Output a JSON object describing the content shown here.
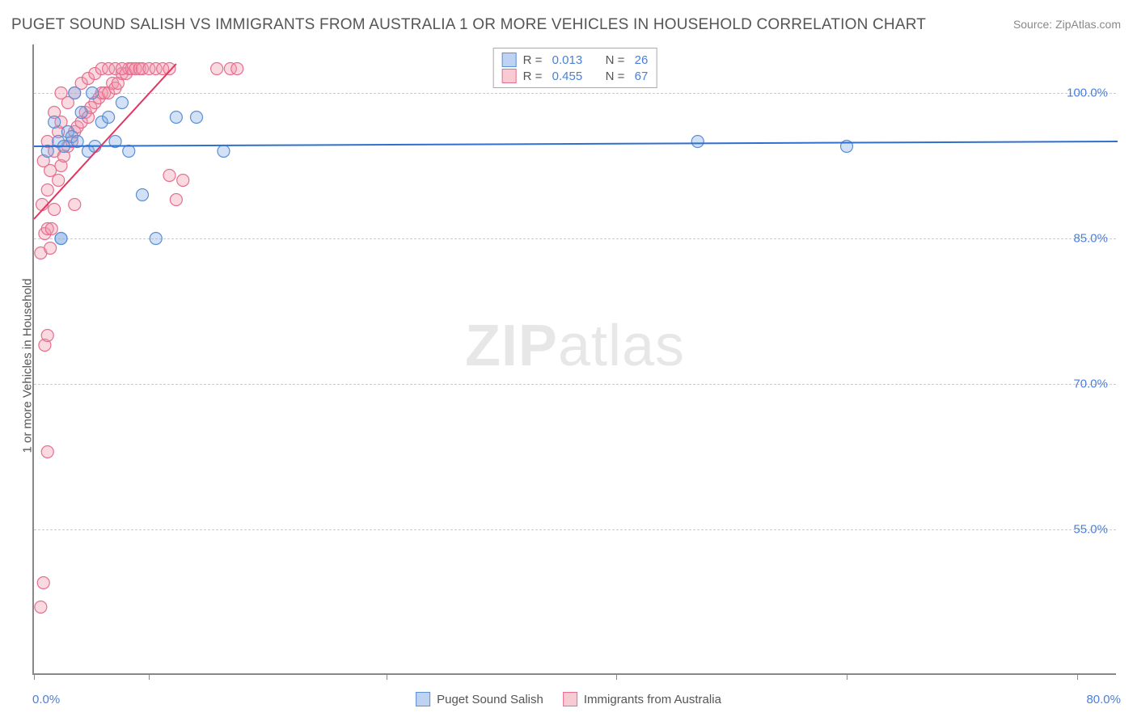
{
  "title": "PUGET SOUND SALISH VS IMMIGRANTS FROM AUSTRALIA 1 OR MORE VEHICLES IN HOUSEHOLD CORRELATION CHART",
  "source": "Source: ZipAtlas.com",
  "y_axis_label": "1 or more Vehicles in Household",
  "watermark_bold": "ZIP",
  "watermark_light": "atlas",
  "x_min_label": "0.0%",
  "x_max_label": "80.0%",
  "chart": {
    "type": "scatter",
    "xlim": [
      0,
      80
    ],
    "ylim": [
      40,
      105
    ],
    "y_ticks": [
      {
        "value": 100,
        "label": "100.0%"
      },
      {
        "value": 85,
        "label": "85.0%"
      },
      {
        "value": 70,
        "label": "70.0%"
      },
      {
        "value": 55,
        "label": "55.0%"
      }
    ],
    "x_tick_positions": [
      0,
      8.5,
      26,
      43,
      60,
      77
    ],
    "background_color": "#ffffff",
    "grid_color": "#cccccc",
    "marker_radius": 7.5,
    "marker_stroke_width": 1.2,
    "series": [
      {
        "id": "blue",
        "name": "Puget Sound Salish",
        "fill": "rgba(125,168,227,0.35)",
        "stroke": "#5b8fd6",
        "line_color": "#2f6fd0",
        "line_width": 2,
        "r_value": "0.013",
        "n_value": "26",
        "trend": {
          "x1": 0,
          "y1": 94.5,
          "x2": 80,
          "y2": 95.0
        },
        "points": [
          [
            1.0,
            94.0
          ],
          [
            1.5,
            97.0
          ],
          [
            1.8,
            95.0
          ],
          [
            2.0,
            85.0
          ],
          [
            2.2,
            94.5
          ],
          [
            2.5,
            96.0
          ],
          [
            2.8,
            95.5
          ],
          [
            3.0,
            100.0
          ],
          [
            3.2,
            95.0
          ],
          [
            3.5,
            98.0
          ],
          [
            4.0,
            94.0
          ],
          [
            4.3,
            100.0
          ],
          [
            4.5,
            94.5
          ],
          [
            5.0,
            97.0
          ],
          [
            5.5,
            97.5
          ],
          [
            6.0,
            95.0
          ],
          [
            6.5,
            99.0
          ],
          [
            7.0,
            94.0
          ],
          [
            8.0,
            89.5
          ],
          [
            9.0,
            85.0
          ],
          [
            10.5,
            97.5
          ],
          [
            12.0,
            97.5
          ],
          [
            14.0,
            94.0
          ],
          [
            49.0,
            95.0
          ],
          [
            60.0,
            94.5
          ],
          [
            2.0,
            85.0
          ]
        ]
      },
      {
        "id": "pink",
        "name": "Immigrants from Australia",
        "fill": "rgba(240,150,170,0.35)",
        "stroke": "#e66f8f",
        "line_color": "#e3355f",
        "line_width": 2,
        "r_value": "0.455",
        "n_value": "67",
        "trend": {
          "x1": 0,
          "y1": 87.0,
          "x2": 10.5,
          "y2": 103.0
        },
        "points": [
          [
            0.5,
            47.0
          ],
          [
            0.7,
            49.5
          ],
          [
            1.0,
            63.0
          ],
          [
            0.8,
            74.0
          ],
          [
            1.0,
            75.0
          ],
          [
            0.5,
            83.5
          ],
          [
            1.2,
            84.0
          ],
          [
            0.8,
            85.5
          ],
          [
            1.0,
            86.0
          ],
          [
            1.3,
            86.0
          ],
          [
            0.6,
            88.5
          ],
          [
            1.5,
            88.0
          ],
          [
            1.0,
            90.0
          ],
          [
            1.8,
            91.0
          ],
          [
            1.2,
            92.0
          ],
          [
            0.7,
            93.0
          ],
          [
            2.0,
            92.5
          ],
          [
            1.5,
            94.0
          ],
          [
            2.2,
            93.5
          ],
          [
            1.0,
            95.0
          ],
          [
            2.5,
            94.5
          ],
          [
            2.8,
            95.0
          ],
          [
            1.8,
            96.0
          ],
          [
            3.0,
            96.0
          ],
          [
            2.0,
            97.0
          ],
          [
            3.2,
            96.5
          ],
          [
            3.5,
            97.0
          ],
          [
            1.5,
            98.0
          ],
          [
            3.8,
            98.0
          ],
          [
            4.0,
            97.5
          ],
          [
            2.5,
            99.0
          ],
          [
            4.2,
            98.5
          ],
          [
            4.5,
            99.0
          ],
          [
            2.0,
            100.0
          ],
          [
            4.8,
            99.5
          ],
          [
            5.0,
            100.0
          ],
          [
            3.0,
            100.0
          ],
          [
            5.2,
            100.0
          ],
          [
            5.5,
            100.0
          ],
          [
            3.5,
            101.0
          ],
          [
            5.8,
            101.0
          ],
          [
            6.0,
            100.5
          ],
          [
            4.0,
            101.5
          ],
          [
            6.2,
            101.0
          ],
          [
            6.5,
            102.0
          ],
          [
            4.5,
            102.0
          ],
          [
            6.8,
            102.0
          ],
          [
            7.0,
            102.5
          ],
          [
            5.0,
            102.5
          ],
          [
            7.2,
            102.5
          ],
          [
            7.5,
            102.5
          ],
          [
            5.5,
            102.5
          ],
          [
            7.8,
            102.5
          ],
          [
            8.0,
            102.5
          ],
          [
            6.0,
            102.5
          ],
          [
            8.5,
            102.5
          ],
          [
            9.0,
            102.5
          ],
          [
            6.5,
            102.5
          ],
          [
            9.5,
            102.5
          ],
          [
            10.0,
            91.5
          ],
          [
            11.0,
            91.0
          ],
          [
            10.5,
            89.0
          ],
          [
            13.5,
            102.5
          ],
          [
            14.5,
            102.5
          ],
          [
            15.0,
            102.5
          ],
          [
            10.0,
            102.5
          ],
          [
            3.0,
            88.5
          ]
        ]
      }
    ]
  },
  "bottom_legend": [
    {
      "label": "Puget Sound Salish",
      "fill": "rgba(125,168,227,0.5)",
      "border": "#5b8fd6"
    },
    {
      "label": "Immigrants from Australia",
      "fill": "rgba(240,150,170,0.5)",
      "border": "#e66f8f"
    }
  ]
}
